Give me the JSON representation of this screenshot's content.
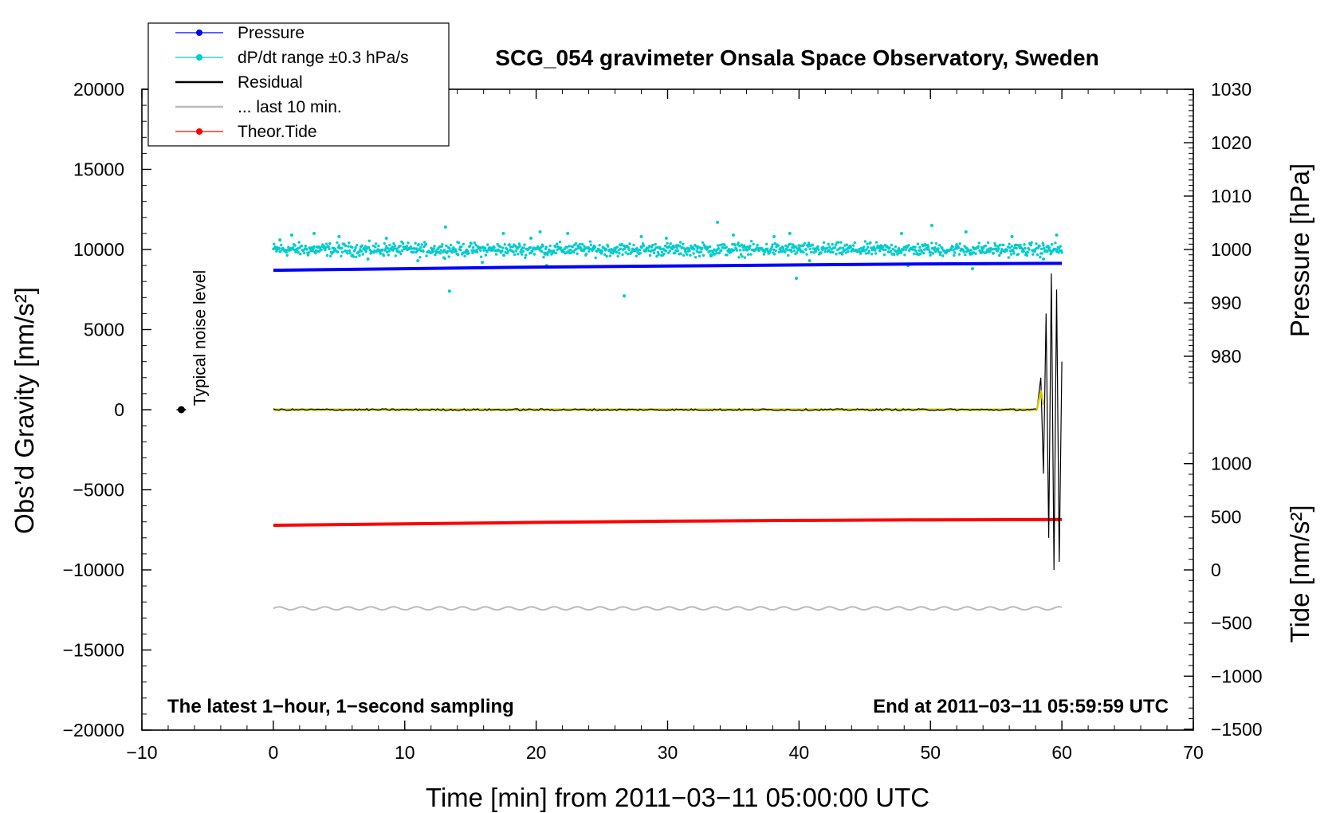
{
  "chart_data": {
    "type": "line",
    "title": "SCG_054 gravimeter Onsala Space Observatory, Sweden",
    "xlabel": "Time [min] from 2011−03−11 05:00:00 UTC",
    "ylabel_left": "Obs’d Gravity [nm/s²]",
    "ylabel_right_top": "Pressure [hPa]",
    "ylabel_right_bottom": "Tide [nm/s²]",
    "xlim": [
      -10,
      70
    ],
    "ylim_left": [
      -20000,
      20000
    ],
    "x_ticks": [
      "−10",
      "0",
      "10",
      "20",
      "30",
      "40",
      "50",
      "60",
      "70"
    ],
    "x_tick_values": [
      -10,
      0,
      10,
      20,
      30,
      40,
      50,
      60,
      70
    ],
    "y_left_ticks": [
      "20000",
      "15000",
      "10000",
      "5000",
      "0",
      "−5000",
      "−10000",
      "−15000",
      "−20000"
    ],
    "y_left_tick_values": [
      20000,
      15000,
      10000,
      5000,
      0,
      -5000,
      -10000,
      -15000,
      -20000
    ],
    "pressure_axis": {
      "ticks": [
        "1030",
        "1020",
        "1010",
        "1000",
        "990",
        "980"
      ],
      "tick_values": [
        1030,
        1020,
        1010,
        1000,
        990,
        980
      ]
    },
    "tide_axis": {
      "ticks": [
        "1000",
        "500",
        "0",
        "−500",
        "−1000",
        "−1500"
      ],
      "tick_values": [
        1000,
        500,
        0,
        -500,
        -1000,
        -1500
      ]
    },
    "grid": false,
    "legend_position": "top-left, outside plot",
    "legend": [
      {
        "label": "Pressure",
        "color": "#0000ff",
        "marker": "dot"
      },
      {
        "label": "dP/dt range ±0.3 hPa/s",
        "color": "#00cccc",
        "marker": "dot"
      },
      {
        "label": "Residual",
        "color": "#000000",
        "marker": "line"
      },
      {
        "label": "... last 10 min.",
        "color": "#bbbbbb",
        "marker": "line"
      },
      {
        "label": "Theor.Tide",
        "color": "#ff0000",
        "marker": "dot"
      }
    ],
    "series": [
      {
        "name": "Pressure",
        "axis": "pressure",
        "color": "#0000ff",
        "x": [
          0,
          10,
          20,
          30,
          40,
          50,
          60
        ],
        "values": [
          996.1,
          996.4,
          996.7,
          996.9,
          997.1,
          997.3,
          997.4
        ]
      },
      {
        "name": "dP/dt range ±0.3 hPa/s",
        "axis": "left",
        "color": "#00cccc",
        "center": 10000,
        "spread": 600,
        "outliers": [
          [
            0.5,
            10600
          ],
          [
            1.4,
            10900
          ],
          [
            3.1,
            11000
          ],
          [
            5.0,
            10800
          ],
          [
            7.2,
            9400
          ],
          [
            8.6,
            10700
          ],
          [
            11.0,
            9300
          ],
          [
            13.1,
            11400
          ],
          [
            13.4,
            7400
          ],
          [
            15.9,
            9200
          ],
          [
            17.5,
            11000
          ],
          [
            19.6,
            10700
          ],
          [
            20.3,
            11100
          ],
          [
            20.8,
            9000
          ],
          [
            22.4,
            11000
          ],
          [
            26.7,
            7100
          ],
          [
            28.0,
            10800
          ],
          [
            29.9,
            10700
          ],
          [
            33.3,
            9600
          ],
          [
            33.8,
            11700
          ],
          [
            35.0,
            10900
          ],
          [
            38.1,
            10800
          ],
          [
            39.3,
            11000
          ],
          [
            39.8,
            8200
          ],
          [
            40.8,
            9300
          ],
          [
            47.8,
            11000
          ],
          [
            48.3,
            9000
          ],
          [
            50.1,
            11500
          ],
          [
            52.7,
            11100
          ],
          [
            53.2,
            8800
          ],
          [
            56.2,
            10800
          ],
          [
            58.6,
            9400
          ],
          [
            59.6,
            10900
          ]
        ]
      },
      {
        "name": "Residual",
        "axis": "left",
        "color": "#000000",
        "x": [
          0,
          58.1,
          58.4,
          58.6,
          58.8,
          59.0,
          59.2,
          59.4,
          59.6,
          59.8,
          60.0
        ],
        "values": [
          0,
          0,
          2000,
          -4000,
          6000,
          -8000,
          8500,
          -10000,
          7500,
          -9500,
          3000
        ]
      },
      {
        "name": "... last 10 min.",
        "axis": "left",
        "color": "#bbbbbb",
        "x": [
          0,
          60
        ],
        "values": [
          -12400,
          -12400
        ]
      },
      {
        "name": "Theor.Tide",
        "axis": "tide",
        "color": "#ff0000",
        "x": [
          0,
          10,
          20,
          30,
          40,
          50,
          60
        ],
        "values": [
          420,
          433,
          447,
          458,
          466,
          471,
          474
        ]
      }
    ],
    "annotations": {
      "noise_label": "Typical noise level",
      "noise_x": -7,
      "noise_y": 0,
      "bottom_left": "The latest 1−hour, 1−second sampling",
      "bottom_right": "End at 2011−03−11 05:59:59 UTC"
    }
  }
}
